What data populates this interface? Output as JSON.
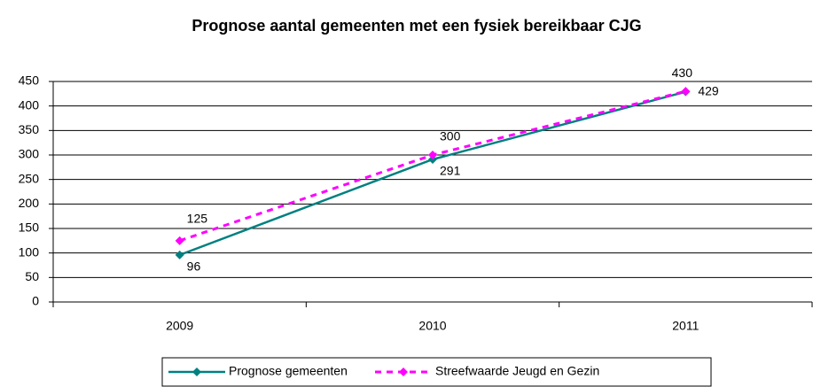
{
  "chart_data": {
    "type": "line",
    "title": "Prognose aantal gemeenten met een fysiek bereikbaar CJG",
    "categories": [
      "2009",
      "2010",
      "2011"
    ],
    "series": [
      {
        "name": "Prognose gemeenten",
        "color": "#008080",
        "values": [
          96,
          291,
          429
        ]
      },
      {
        "name": "Streefwaarde Jeugd en Gezin",
        "color": "#ff00ff",
        "values": [
          125,
          300,
          430
        ]
      }
    ],
    "ylim": [
      0,
      450
    ],
    "yticks": [
      0,
      50,
      100,
      150,
      200,
      250,
      300,
      350,
      400,
      450
    ],
    "grid": true,
    "legend": "bottom"
  }
}
